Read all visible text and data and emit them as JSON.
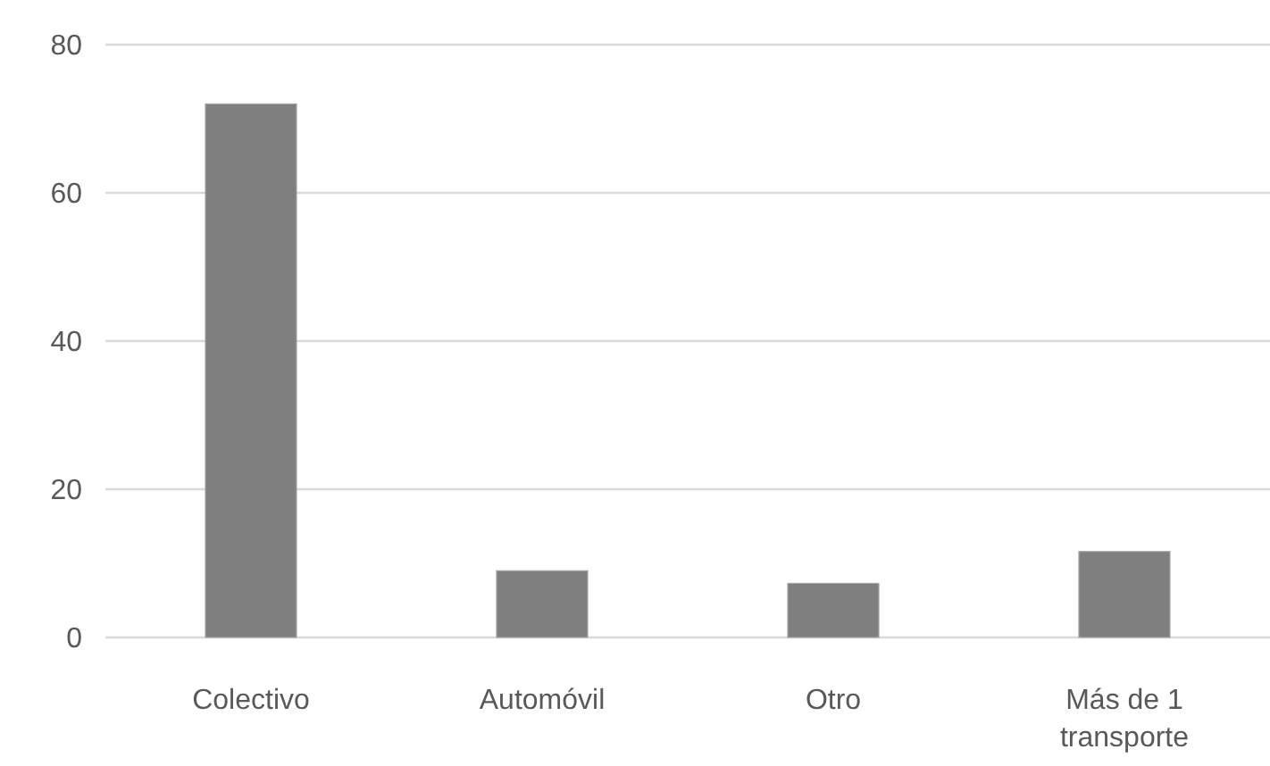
{
  "chart_data": {
    "type": "bar",
    "categories": [
      "Colectivo",
      "Automóvil",
      "Otro",
      "Más de 1 transporte"
    ],
    "values": [
      72,
      9,
      7.3,
      11.6
    ],
    "color": "#7f7f7f",
    "ylim": [
      0,
      80
    ],
    "yticks": [
      0,
      20,
      40,
      60,
      80
    ],
    "grid": "y"
  }
}
